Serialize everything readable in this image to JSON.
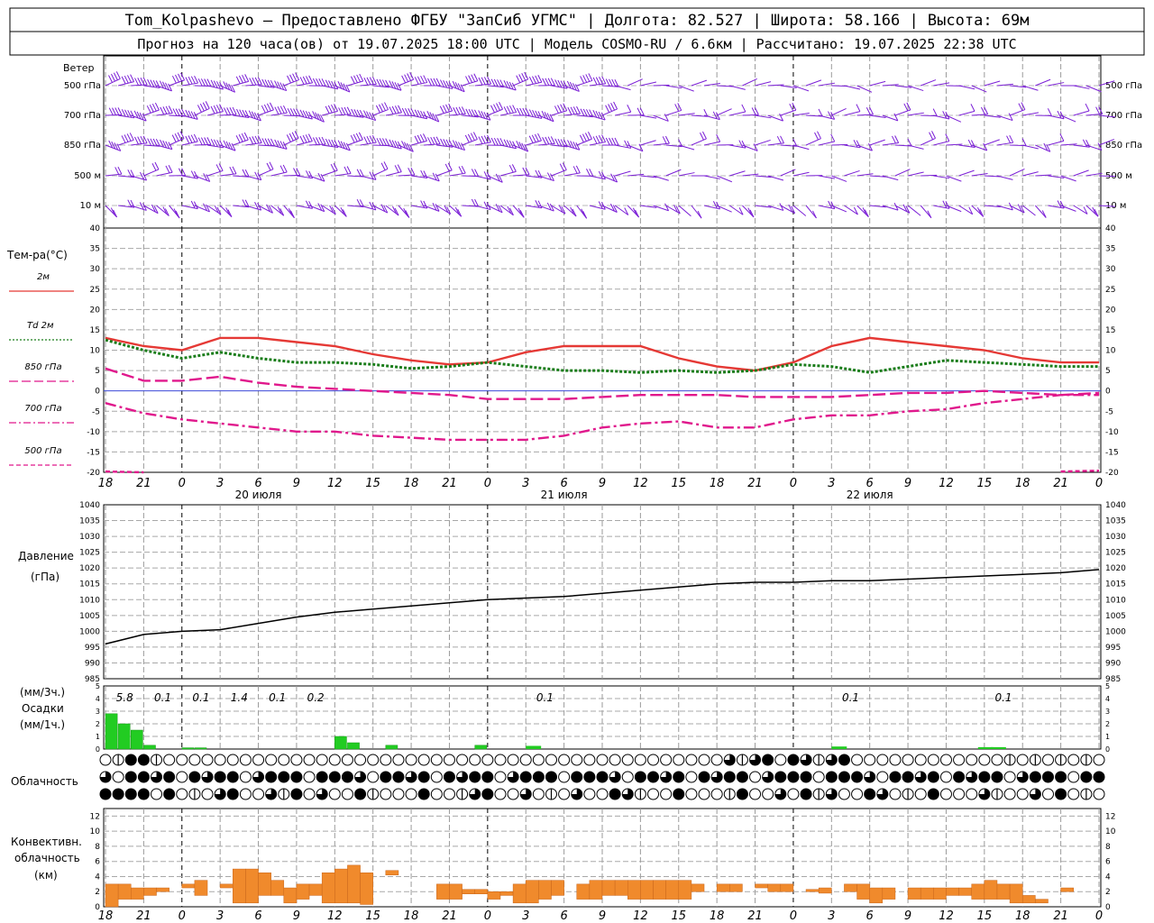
{
  "header": {
    "line1": "Tom_Kolpashevo — Предоставлено ФГБУ \"ЗапСиб УГМС\" | Долгота: 82.527 | Широта: 58.166 | Высота: 69м",
    "line2": "Прогноз на 120 часа(ов) от 19.07.2025 18:00 UTC  | Модель COSMO-RU / 6.6км | Рассчитано: 19.07.2025 22:38 UTC"
  },
  "time_axis": {
    "hours": [
      "18",
      "21",
      "0",
      "3",
      "6",
      "9",
      "12",
      "15",
      "18",
      "21",
      "0",
      "3",
      "6",
      "9",
      "12",
      "15",
      "18",
      "21",
      "0",
      "3",
      "6",
      "9",
      "12",
      "15",
      "18",
      "21",
      "0"
    ],
    "dates": [
      "20 июля",
      "21 июля",
      "22 июля"
    ]
  },
  "wind": {
    "title": "Ветер",
    "levels": [
      "500 гПа",
      "700 гПа",
      "850 гПа",
      "500 м",
      "10  м"
    ],
    "color": "#7b1fd6"
  },
  "temperature": {
    "title": "Тем-ра(°С)",
    "legend": [
      {
        "label": "2м",
        "color": "#e53935",
        "dash": "solid"
      },
      {
        "label": "Td  2м",
        "color": "#1b7d1b",
        "dash": "dotted"
      },
      {
        "label": "850 гПа",
        "color": "#e0188c",
        "dash": "long"
      },
      {
        "label": "700 гПа",
        "color": "#e0188c",
        "dash": "dashdot"
      },
      {
        "label": "500 гПа",
        "color": "#e0188c",
        "dash": "short"
      }
    ],
    "ylim": [
      -20,
      40
    ],
    "ticks": [
      "40",
      "35",
      "30",
      "25",
      "20",
      "15",
      "10",
      "5",
      "0",
      "-5",
      "-10",
      "-15",
      "-20"
    ]
  },
  "pressure": {
    "title": "Давление",
    "unit": "(гПа)",
    "ylim": [
      985,
      1040
    ],
    "ticks": [
      "1040",
      "1035",
      "1030",
      "1025",
      "1020",
      "1015",
      "1010",
      "1005",
      "1000",
      "995",
      "990",
      "985"
    ]
  },
  "precip": {
    "unit_top": "(мм/3ч.)",
    "title": "Осадки",
    "unit_bottom": "(мм/1ч.)",
    "ticks": [
      "5",
      "4",
      "3",
      "2",
      "1",
      "0"
    ],
    "labels": [
      {
        "hour": 1.5,
        "text": "5.8"
      },
      {
        "hour": 4.5,
        "text": "0.1"
      },
      {
        "hour": 7.5,
        "text": "0.1"
      },
      {
        "hour": 10.5,
        "text": "1.4"
      },
      {
        "hour": 13.5,
        "text": "0.1"
      },
      {
        "hour": 16.5,
        "text": "0.2"
      },
      {
        "hour": 34.5,
        "text": "0.1"
      },
      {
        "hour": 58.5,
        "text": "0.1"
      },
      {
        "hour": 70.5,
        "text": "0.1"
      }
    ],
    "color": "#22cc22"
  },
  "clouds": {
    "title": "Облачность"
  },
  "convective": {
    "title1": "Конвективн.",
    "title2": "облачность",
    "unit": "(км)",
    "ticks": [
      "12",
      "10",
      "8",
      "6",
      "4",
      "2",
      "0"
    ],
    "color": "#f08a2c"
  },
  "chart_data": {
    "type": "line",
    "x_hours_from_start": [
      0,
      3,
      6,
      9,
      12,
      15,
      18,
      21,
      24,
      27,
      30,
      33,
      36,
      39,
      42,
      45,
      48,
      51,
      54,
      57,
      60,
      63,
      66,
      69,
      72,
      75,
      78
    ],
    "series": [
      {
        "name": "2м",
        "values": [
          13,
          11,
          10,
          13,
          13,
          12,
          11,
          9,
          7.5,
          6.5,
          7,
          9.5,
          11,
          11,
          11,
          8,
          6,
          5,
          7,
          11,
          13,
          12,
          11,
          10,
          8,
          7,
          7
        ]
      },
      {
        "name": "Td  2м",
        "values": [
          12.5,
          10,
          8,
          9.5,
          8,
          7,
          7,
          6.5,
          5.5,
          6,
          7,
          6,
          5,
          5,
          4.5,
          5,
          4.5,
          5,
          6.5,
          6,
          4.5,
          6,
          7.5,
          7,
          6.5,
          6,
          6
        ]
      },
      {
        "name": "850 гПа",
        "values": [
          5.5,
          2.5,
          2.5,
          3.5,
          2,
          1,
          0.5,
          0,
          -0.5,
          -1,
          -2,
          -2,
          -2,
          -1.5,
          -1,
          -1,
          -1,
          -1.5,
          -1.5,
          -1.5,
          -1,
          -0.5,
          -0.5,
          0,
          -0.5,
          -1,
          -0.5
        ]
      },
      {
        "name": "700 гПа",
        "values": [
          -3,
          -5.5,
          -7,
          -8,
          -9,
          -10,
          -10,
          -11,
          -11.5,
          -12,
          -12,
          -12,
          -11,
          -9,
          -8,
          -7.5,
          -9,
          -9,
          -7,
          -6,
          -6,
          -5,
          -4.5,
          -3,
          -2,
          -1,
          -1
        ]
      },
      {
        "name": "500 гПа",
        "values": [
          -19.8,
          -20,
          null,
          null,
          null,
          null,
          null,
          null,
          null,
          null,
          null,
          null,
          null,
          null,
          null,
          null,
          null,
          null,
          null,
          null,
          null,
          null,
          null,
          null,
          null,
          -19.8,
          -19.6
        ]
      },
      {
        "name": "Давление",
        "values": [
          996,
          999,
          1000,
          1000.5,
          1002.5,
          1004.5,
          1006,
          1007,
          1008,
          1009,
          1010,
          1010.5,
          1011,
          1012,
          1013,
          1014,
          1015,
          1015.5,
          1015.5,
          1016,
          1016,
          1016.5,
          1017,
          1017.5,
          1018,
          1018.5,
          1019.5
        ]
      }
    ],
    "precipitation_mm_per_h": [
      2.8,
      2.0,
      1.5,
      0.3,
      0,
      0,
      0.1,
      0.1,
      0,
      0,
      0,
      0,
      0,
      0,
      0,
      0,
      0,
      0,
      1.0,
      0.5,
      0,
      0,
      0.3,
      0,
      0,
      0,
      0,
      0,
      0,
      0.3
    ],
    "convective_base_top_km": [
      [
        0,
        3
      ],
      [
        1,
        3
      ],
      [
        1,
        2.5
      ],
      [
        1.5,
        2.5
      ],
      [
        2,
        2.5
      ],
      null,
      [
        2.5,
        3
      ],
      [
        1.5,
        3.5
      ],
      null,
      [
        2.5,
        3
      ],
      [
        0.5,
        5
      ],
      [
        0.5,
        5
      ],
      [
        1.5,
        4.5
      ],
      [
        1.5,
        3.5
      ],
      [
        0.5,
        2.5
      ],
      [
        1,
        3
      ],
      [
        1.5,
        3
      ],
      [
        0.5,
        4.5
      ],
      [
        0.5,
        5
      ],
      [
        0.5,
        5.5
      ],
      [
        0.3,
        4.5
      ],
      null,
      [
        4.2,
        4.8
      ]
    ],
    "ylim_temperature": [
      -20,
      40
    ],
    "ylim_pressure": [
      985,
      1040
    ],
    "ylim_precip": [
      0,
      5
    ],
    "ylim_convective_km": [
      0,
      13
    ],
    "grid": true
  }
}
